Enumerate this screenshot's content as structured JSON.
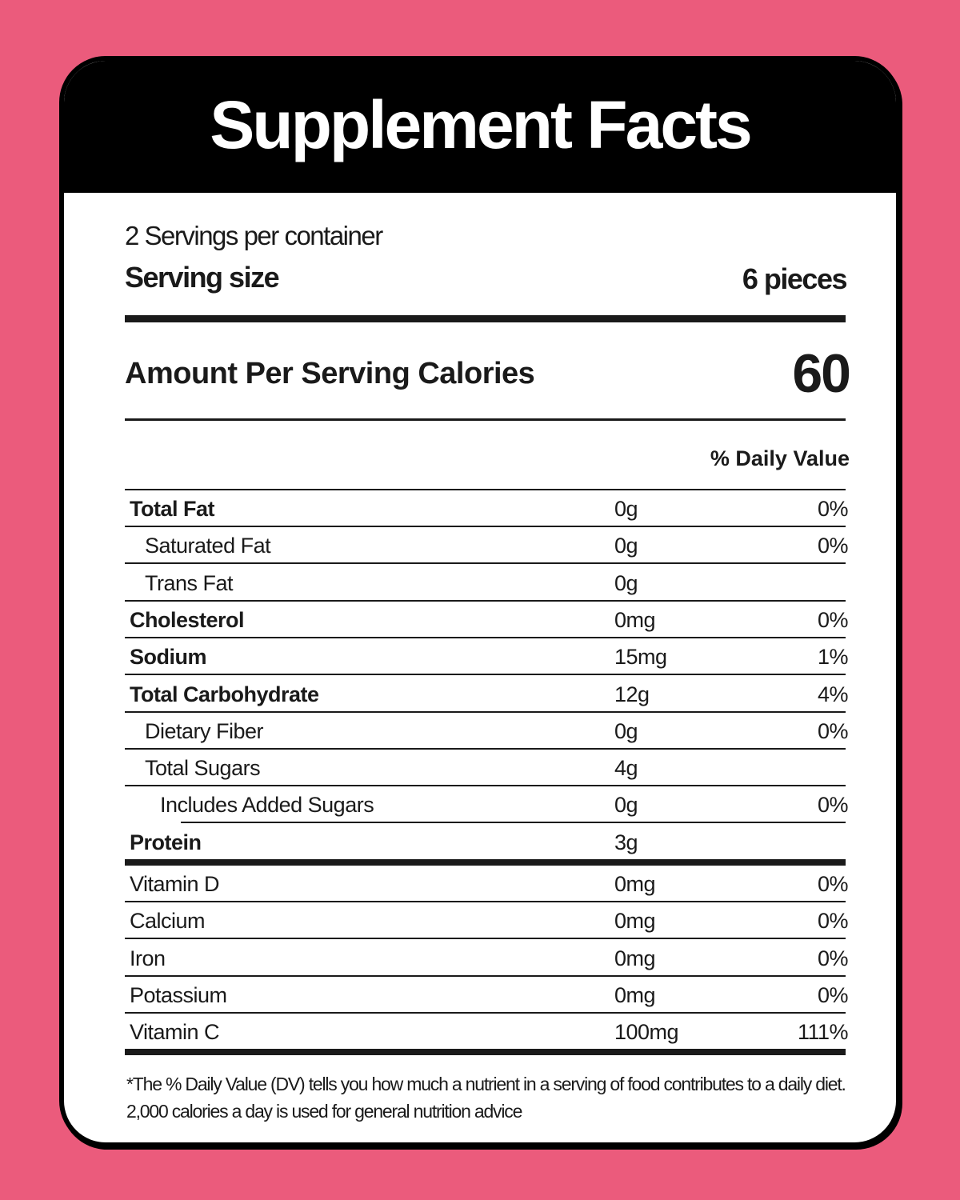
{
  "title": "Supplement Facts",
  "servings_per_container": "2 Servings per container",
  "serving_size_label": "Serving size",
  "serving_size_value": "6 pieces",
  "calories_label": "Amount Per Serving Calories",
  "calories_value": "60",
  "daily_value_header": "% Daily Value",
  "nutrients": [
    {
      "name": "Total Fat",
      "amount": "0g",
      "dv": "0%",
      "bold": true,
      "indent": 0
    },
    {
      "name": "Saturated Fat",
      "amount": "0g",
      "dv": "0%",
      "bold": false,
      "indent": 1
    },
    {
      "name": "Trans Fat",
      "amount": "0g",
      "dv": "",
      "bold": false,
      "indent": 1
    },
    {
      "name": "Cholesterol",
      "amount": "0mg",
      "dv": "0%",
      "bold": true,
      "indent": 0
    },
    {
      "name": "Sodium",
      "amount": "15mg",
      "dv": "1%",
      "bold": true,
      "indent": 0
    },
    {
      "name": "Total Carbohydrate",
      "amount": "12g",
      "dv": "4%",
      "bold": true,
      "indent": 0
    },
    {
      "name": "Dietary Fiber",
      "amount": "0g",
      "dv": "0%",
      "bold": false,
      "indent": 1
    },
    {
      "name": "Total Sugars",
      "amount": "4g",
      "dv": "",
      "bold": false,
      "indent": 1
    },
    {
      "name": "Includes Added Sugars",
      "amount": "0g",
      "dv": "0%",
      "bold": false,
      "indent": 2
    },
    {
      "name": "Protein",
      "amount": "3g",
      "dv": "",
      "bold": true,
      "indent": 0
    }
  ],
  "vitamins": [
    {
      "name": "Vitamin D",
      "amount": "0mg",
      "dv": "0%"
    },
    {
      "name": "Calcium",
      "amount": "0mg",
      "dv": "0%"
    },
    {
      "name": "Iron",
      "amount": "0mg",
      "dv": "0%"
    },
    {
      "name": "Potassium",
      "amount": "0mg",
      "dv": "0%"
    },
    {
      "name": "Vitamin C",
      "amount": "100mg",
      "dv": "111%"
    }
  ],
  "footnote": "*The % Daily Value (DV) tells you how much a nutrient in a serving of food contributes to a daily diet. 2,000 calories a day is used for general nutrition advice",
  "colors": {
    "background": "#eb5b7c",
    "header": "#000000",
    "panel": "#ffffff"
  }
}
